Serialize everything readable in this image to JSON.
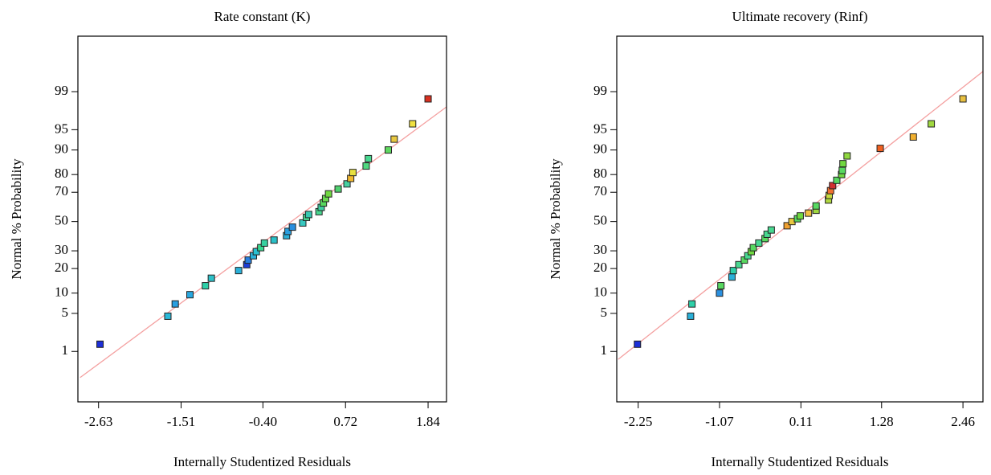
{
  "chart_data": [
    {
      "type": "scatter",
      "title": "Rate constant (K)",
      "x_label": "Internally Studentized Residuals",
      "y_label": "Normal % Probability",
      "y_scale": "probability",
      "x": [
        -2.61,
        -1.69,
        -1.59,
        -1.39,
        -1.18,
        -1.1,
        -0.73,
        -0.62,
        -0.6,
        -0.53,
        -0.49,
        -0.43,
        -0.38,
        -0.25,
        -0.08,
        -0.06,
        0.0,
        0.14,
        0.19,
        0.22,
        0.36,
        0.39,
        0.42,
        0.45,
        0.49,
        0.62,
        0.74,
        0.79,
        0.82,
        1.0,
        1.03,
        1.3,
        1.38,
        1.63,
        1.84
      ],
      "y": [
        1.4,
        4.5,
        7,
        9.5,
        12.5,
        15.5,
        19,
        22,
        24.5,
        27,
        29.5,
        32,
        35,
        37,
        40,
        43,
        46,
        49,
        53,
        55,
        57,
        60,
        63,
        66,
        69,
        72,
        75,
        78,
        81,
        84,
        87,
        90,
        93,
        96,
        98.6
      ],
      "colors": [
        "#1d2fd8",
        "#2bb8d8",
        "#2a9fe0",
        "#2aa8e0",
        "#2ed0a8",
        "#2ec0c8",
        "#2ab0d8",
        "#1d3fd8",
        "#2a7fe0",
        "#2ab0d8",
        "#2ac0d0",
        "#38d890",
        "#38d0a0",
        "#2ac0c8",
        "#2ab0d8",
        "#2a9fe0",
        "#2a90e0",
        "#38c8c0",
        "#48d890",
        "#38c8b0",
        "#48d890",
        "#40d0a0",
        "#58d860",
        "#68d850",
        "#70d840",
        "#50d070",
        "#48d0a0",
        "#f0b830",
        "#e8e040",
        "#50d880",
        "#48d890",
        "#60d860",
        "#e8c840",
        "#f0e040",
        "#d83020"
      ],
      "fit_line": {
        "x": [
          -2.88,
          2.09
        ],
        "y": [
          0.26,
          98.0
        ]
      },
      "line_color": "#f4a0a0",
      "xlim": [
        -2.91,
        2.09
      ],
      "ylim": [
        0.062,
        99.955
      ],
      "xticks": [
        -2.63,
        -1.51,
        {
          "value": -0.4,
          "label": "-0.40"
        },
        0.72,
        1.84
      ],
      "yticks": [
        1,
        5,
        10,
        20,
        30,
        50,
        70,
        80,
        90,
        95,
        99
      ]
    },
    {
      "type": "scatter",
      "title": "Ultimate recovery (Rinf)",
      "x_label": "Internally Studentized Residuals",
      "y_label": "Normal % Probability",
      "y_scale": "probability",
      "x": [
        -2.26,
        -1.49,
        -1.47,
        -1.07,
        -1.05,
        -0.89,
        -0.87,
        -0.79,
        -0.71,
        -0.66,
        -0.61,
        -0.58,
        -0.5,
        -0.41,
        -0.38,
        -0.32,
        -0.09,
        -0.02,
        0.06,
        0.1,
        0.22,
        0.33,
        0.33,
        0.51,
        0.52,
        0.54,
        0.57,
        0.63,
        0.7,
        0.71,
        0.72,
        0.78,
        1.26,
        1.74,
        2.0,
        2.46
      ],
      "y": [
        1.4,
        4.5,
        7,
        10,
        12.5,
        16,
        19,
        22,
        24.5,
        27,
        29.5,
        32,
        35,
        38,
        41,
        44,
        47,
        50,
        52,
        54,
        56,
        58,
        61,
        65,
        68,
        71,
        74,
        77,
        80,
        82,
        85,
        88,
        90.5,
        93.5,
        96,
        98.6
      ],
      "colors": [
        "#1d2fd8",
        "#2ab0d8",
        "#2ed0a8",
        "#2a90e0",
        "#58d860",
        "#2ab0d8",
        "#2ed0a8",
        "#48d890",
        "#58d860",
        "#48d890",
        "#70d840",
        "#58d860",
        "#48d890",
        "#58d860",
        "#48d890",
        "#48d890",
        "#f0a030",
        "#e8c840",
        "#58d860",
        "#70d840",
        "#f0c040",
        "#a0d840",
        "#58d860",
        "#b0d840",
        "#c8d840",
        "#f07030",
        "#d03030",
        "#58d860",
        "#70d840",
        "#58d860",
        "#70d840",
        "#90d840",
        "#f06020",
        "#f0b030",
        "#a0d840",
        "#e8c040"
      ],
      "fit_line": {
        "x": [
          -2.54,
          2.75
        ],
        "y": [
          0.68,
          99.64
        ]
      },
      "line_color": "#f4a0a0",
      "xlim": [
        -2.56,
        2.75
      ],
      "ylim": [
        0.062,
        99.955
      ],
      "xticks": [
        -2.25,
        -1.07,
        0.11,
        1.28,
        2.46
      ],
      "yticks": [
        1,
        5,
        10,
        20,
        30,
        50,
        70,
        80,
        90,
        95,
        99
      ]
    }
  ]
}
